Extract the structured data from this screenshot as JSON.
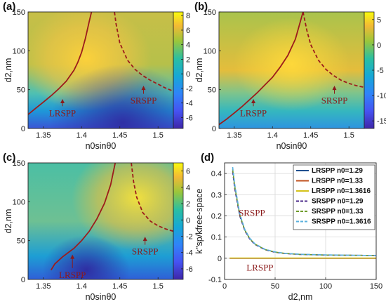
{
  "chart_data": [
    {
      "type": "heatmap",
      "panel_label": "(a)",
      "xlabel": "n0sinθ0",
      "ylabel": "d2,nm",
      "xlim": [
        1.33,
        1.52
      ],
      "ylim": [
        0,
        150
      ],
      "xticks": [
        "1.35",
        "1.4",
        "1.45",
        "1.5"
      ],
      "yticks": [
        "0",
        "50",
        "100",
        "150"
      ],
      "colorbar": {
        "range": [
          -7.5,
          8.5
        ],
        "ticks": [
          "8",
          "6",
          "4",
          "2",
          "0",
          "-2",
          "-4",
          "-6"
        ],
        "tick_values": [
          8,
          6,
          4,
          2,
          0,
          -2,
          -4,
          -6
        ]
      },
      "annotations": [
        {
          "text": "LRSPP",
          "x": 1.375,
          "y": 16,
          "arrow_to": [
            1.375,
            38
          ]
        },
        {
          "text": "SRSPP",
          "x": 1.481,
          "y": 32,
          "arrow_to": [
            1.481,
            55
          ]
        }
      ],
      "series": [
        {
          "style": "solid",
          "x": [
            1.33,
            1.34,
            1.35,
            1.36,
            1.37,
            1.38,
            1.39,
            1.395,
            1.4,
            1.405,
            1.41,
            1.413
          ],
          "y": [
            18,
            26,
            34,
            42,
            51,
            61,
            75,
            85,
            98,
            116,
            138,
            150
          ]
        },
        {
          "style": "dashed",
          "x": [
            1.443,
            1.445,
            1.45,
            1.46,
            1.47,
            1.48,
            1.49,
            1.5,
            1.51,
            1.52
          ],
          "y": [
            150,
            135,
            110,
            88,
            76,
            68,
            62,
            57,
            52,
            48
          ]
        }
      ]
    },
    {
      "type": "heatmap",
      "panel_label": "(b)",
      "xlabel": "n0sinθ0",
      "ylabel": "d2,nm",
      "xlim": [
        1.33,
        1.52
      ],
      "ylim": [
        0,
        150
      ],
      "xticks": [
        "1.35",
        "1.4",
        "1.45",
        "1.5"
      ],
      "yticks": [
        "0",
        "50",
        "100",
        "150"
      ],
      "colorbar": {
        "range": [
          -16.5,
          6.5
        ],
        "ticks": [
          "5",
          "0",
          "-5",
          "-10",
          "-15"
        ],
        "tick_values": [
          5,
          0,
          -5,
          -10,
          -15
        ]
      },
      "annotations": [
        {
          "text": "LRSPP",
          "x": 1.375,
          "y": 16,
          "arrow_to": [
            1.375,
            38
          ]
        },
        {
          "text": "SRSPP",
          "x": 1.481,
          "y": 32,
          "arrow_to": [
            1.481,
            55
          ]
        }
      ],
      "series": [
        {
          "style": "solid",
          "x": [
            1.33,
            1.34,
            1.35,
            1.36,
            1.37,
            1.38,
            1.39,
            1.4,
            1.41,
            1.42,
            1.43,
            1.44
          ],
          "y": [
            5,
            12,
            20,
            28,
            37,
            46,
            56,
            66,
            79,
            94,
            115,
            150
          ]
        },
        {
          "style": "dashed",
          "x": [
            1.44,
            1.445,
            1.45,
            1.46,
            1.47,
            1.48,
            1.49,
            1.5,
            1.51,
            1.52
          ],
          "y": [
            150,
            126,
            108,
            88,
            76,
            68,
            62,
            58,
            55,
            53
          ]
        }
      ]
    },
    {
      "type": "heatmap",
      "panel_label": "(c)",
      "xlabel": "n0sinθ0",
      "ylabel": "d2,nm",
      "xlim": [
        1.33,
        1.52
      ],
      "ylim": [
        0,
        150
      ],
      "xticks": [
        "1.35",
        "1.4",
        "1.45",
        "1.5"
      ],
      "yticks": [
        "0",
        "50",
        "100",
        "150"
      ],
      "colorbar": {
        "range": [
          -7.3,
          7.0
        ],
        "ticks": [
          "6",
          "4",
          "2",
          "0",
          "-2",
          "-4",
          "-6"
        ],
        "tick_values": [
          6,
          4,
          2,
          0,
          -2,
          -4,
          -6
        ]
      },
      "annotations": [
        {
          "text": "LRSPP",
          "x": 1.388,
          "y": 2,
          "arrow_to": [
            1.388,
            32
          ]
        },
        {
          "text": "SRSPP",
          "x": 1.483,
          "y": 32,
          "arrow_to": [
            1.483,
            55
          ]
        }
      ],
      "series": [
        {
          "style": "solid",
          "x": [
            1.36,
            1.365,
            1.375,
            1.39,
            1.4,
            1.41,
            1.42,
            1.43,
            1.438,
            1.444
          ],
          "y": [
            12,
            20,
            29,
            40,
            50,
            62,
            78,
            98,
            122,
            150
          ]
        },
        {
          "style": "dashed",
          "x": [
            1.465,
            1.468,
            1.472,
            1.48,
            1.49,
            1.5,
            1.51,
            1.52
          ],
          "y": [
            150,
            126,
            106,
            86,
            75,
            69,
            65,
            62
          ]
        }
      ]
    },
    {
      "type": "line",
      "panel_label": "(d)",
      "xlabel": "d2,nm",
      "ylabel": "k''sp/kfree-space",
      "xlim": [
        0,
        150
      ],
      "ylim": [
        -0.1,
        0.45
      ],
      "xticks": [
        "0",
        "50",
        "100",
        "150"
      ],
      "yticks": [
        "-0.1",
        "0",
        "0.1",
        "0.2",
        "0.3",
        "0.4"
      ],
      "annotations": [
        {
          "text": "SRSPP",
          "x": 27,
          "y": 0.2
        },
        {
          "text": "LRSPP",
          "x": 35,
          "y": -0.058
        }
      ],
      "legend": "top-right",
      "series": [
        {
          "name": "LRSPP n0=1.29",
          "color": "#1f4f8f",
          "style": "solid",
          "x": [
            5,
            150
          ],
          "y": [
            0.0,
            0.0
          ]
        },
        {
          "name": "LRSPP n0=1.33",
          "color": "#c0501d",
          "style": "solid",
          "x": [
            5,
            150
          ],
          "y": [
            0.0,
            0.0
          ]
        },
        {
          "name": "LRSPP n0=1.3616",
          "color": "#d4c21a",
          "style": "solid",
          "x": [
            5,
            150
          ],
          "y": [
            0.001,
            0.001
          ]
        },
        {
          "name": "SRSPP n0=1.29",
          "color": "#4b2a8a",
          "style": "dashed",
          "x": [
            8,
            10,
            15,
            20,
            25,
            30,
            40,
            50,
            60,
            75,
            100,
            125,
            150
          ],
          "y": [
            0.41,
            0.33,
            0.2,
            0.13,
            0.09,
            0.065,
            0.04,
            0.028,
            0.022,
            0.018,
            0.015,
            0.014,
            0.013
          ]
        },
        {
          "name": "SRSPP n0=1.33",
          "color": "#6f9b2b",
          "style": "dashed",
          "x": [
            8,
            10,
            15,
            20,
            25,
            30,
            40,
            50,
            60,
            75,
            100,
            125,
            150
          ],
          "y": [
            0.42,
            0.34,
            0.205,
            0.133,
            0.092,
            0.067,
            0.041,
            0.029,
            0.023,
            0.018,
            0.015,
            0.014,
            0.013
          ]
        },
        {
          "name": "SRSPP n0=1.3616",
          "color": "#5ab0dd",
          "style": "dashed",
          "x": [
            8,
            10,
            15,
            20,
            25,
            30,
            40,
            50,
            60,
            75,
            100,
            125,
            150
          ],
          "y": [
            0.43,
            0.35,
            0.21,
            0.136,
            0.094,
            0.068,
            0.042,
            0.03,
            0.023,
            0.019,
            0.016,
            0.014,
            0.013
          ]
        }
      ]
    }
  ]
}
